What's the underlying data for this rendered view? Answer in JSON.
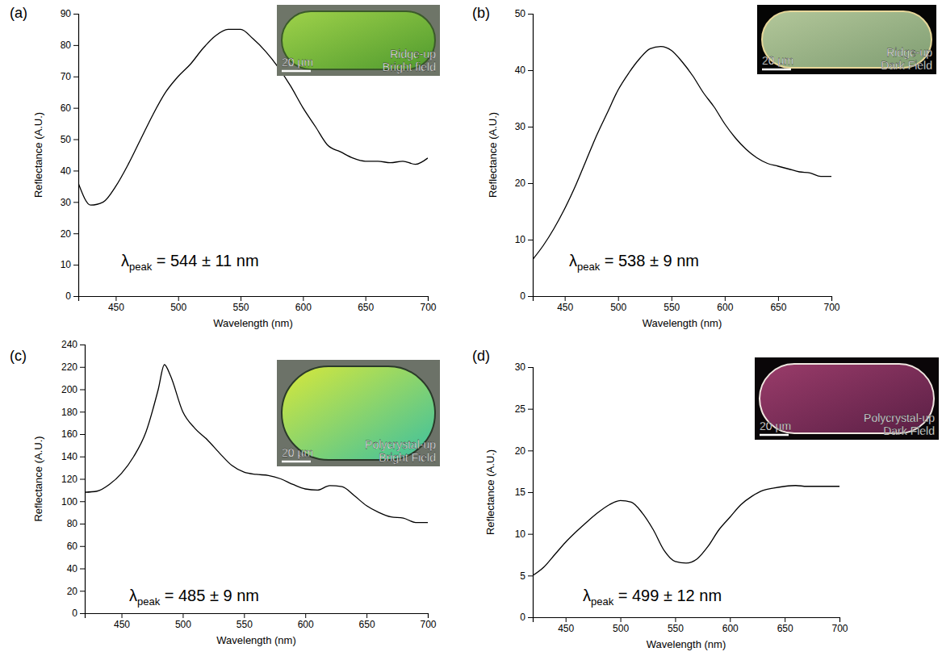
{
  "chart_data": [
    {
      "type": "line",
      "panel_label": "(a)",
      "x_label": "Wavelength (nm)",
      "y_label": "Reflectance (A.U.)",
      "annotation": {
        "symbol": "λ",
        "subscript": "peak",
        "text": " = 544 ± 11 nm"
      },
      "inset": {
        "lines": [
          "Ridge-up",
          "Bright field"
        ],
        "scale_bar": "20 µm"
      },
      "x": [
        420,
        430,
        440,
        450,
        460,
        470,
        480,
        490,
        500,
        510,
        520,
        530,
        540,
        550,
        560,
        570,
        580,
        590,
        600,
        610,
        620,
        630,
        640,
        650,
        660,
        670,
        680,
        690,
        700
      ],
      "values": [
        36,
        29,
        30,
        35,
        42,
        50,
        58,
        65,
        70,
        74,
        79,
        83,
        85,
        85,
        82,
        78,
        73,
        67,
        60,
        54,
        48,
        46,
        44,
        43,
        43,
        42.5,
        43,
        42,
        44
      ],
      "color": "#000000",
      "xlim": [
        420,
        700
      ],
      "xticks": [
        450,
        500,
        550,
        600,
        650,
        700
      ],
      "ylim": [
        0,
        90
      ],
      "yticks": [
        0,
        10,
        20,
        30,
        40,
        50,
        60,
        70,
        80,
        90
      ]
    },
    {
      "type": "line",
      "panel_label": "(b)",
      "x_label": "Wavelength (nm)",
      "y_label": "Reflectance (A.U.)",
      "annotation": {
        "symbol": "λ",
        "subscript": "peak",
        "text": " = 538 ± 9 nm"
      },
      "inset": {
        "lines": [
          "Ridge-up",
          "Dark Field"
        ],
        "scale_bar": "20 µm"
      },
      "x": [
        420,
        430,
        440,
        450,
        460,
        470,
        480,
        490,
        500,
        510,
        520,
        530,
        540,
        550,
        560,
        570,
        580,
        590,
        600,
        610,
        620,
        630,
        640,
        650,
        660,
        670,
        680,
        690,
        700
      ],
      "values": [
        6.5,
        9,
        12,
        15.5,
        19.5,
        24,
        28.5,
        32.5,
        36.5,
        39.5,
        42,
        43.8,
        44.2,
        43.5,
        41.5,
        39,
        36,
        33.5,
        30.5,
        28,
        26,
        24.5,
        23.5,
        23,
        22.5,
        22,
        21.8,
        21.2,
        21.2
      ],
      "color": "#000000",
      "xlim": [
        420,
        700
      ],
      "xticks": [
        450,
        500,
        550,
        600,
        650,
        700
      ],
      "ylim": [
        0,
        50
      ],
      "yticks": [
        0,
        10,
        20,
        30,
        40,
        50
      ]
    },
    {
      "type": "line",
      "panel_label": "(c)",
      "x_label": "Wavelength (nm)",
      "y_label": "Reflectance (A.U.)",
      "annotation": {
        "symbol": "λ",
        "subscript": "peak",
        "text": " = 485 ± 9 nm"
      },
      "inset": {
        "lines": [
          "Polycrystal-up",
          "Bright Field"
        ],
        "scale_bar": "20 µm"
      },
      "x": [
        420,
        430,
        440,
        450,
        460,
        470,
        480,
        485,
        490,
        500,
        510,
        520,
        530,
        540,
        550,
        560,
        570,
        580,
        590,
        600,
        610,
        620,
        630,
        640,
        650,
        660,
        670,
        680,
        690,
        700
      ],
      "values": [
        108,
        109,
        115,
        125,
        140,
        162,
        200,
        222,
        212,
        180,
        165,
        155,
        143,
        132,
        126,
        124,
        123,
        120,
        115,
        111,
        110,
        114,
        113,
        105,
        96,
        90,
        86,
        85,
        81,
        81
      ],
      "color": "#000000",
      "xlim": [
        420,
        700
      ],
      "xticks": [
        450,
        500,
        550,
        600,
        650,
        700
      ],
      "ylim": [
        0,
        240
      ],
      "yticks": [
        0,
        20,
        40,
        60,
        80,
        100,
        120,
        140,
        160,
        180,
        200,
        220,
        240
      ]
    },
    {
      "type": "line",
      "panel_label": "(d)",
      "x_label": "Wavelength (nm)",
      "y_label": "Reflectance (A.U.)",
      "annotation": {
        "symbol": "λ",
        "subscript": "peak",
        "text": " = 499 ± 12 nm"
      },
      "inset": {
        "lines": [
          "Polycrystal-up",
          "Dark Field"
        ],
        "scale_bar": "20 µm"
      },
      "x": [
        420,
        430,
        440,
        450,
        460,
        470,
        480,
        490,
        500,
        510,
        520,
        530,
        540,
        550,
        560,
        570,
        580,
        590,
        600,
        610,
        620,
        630,
        640,
        650,
        660,
        670,
        680,
        690,
        700
      ],
      "values": [
        5,
        6,
        7.5,
        9,
        10.3,
        11.5,
        12.6,
        13.5,
        14,
        13.8,
        12.5,
        10.5,
        8,
        6.7,
        6.5,
        7,
        8.5,
        10.5,
        12,
        13.5,
        14.5,
        15.2,
        15.5,
        15.7,
        15.8,
        15.7,
        15.7,
        15.7,
        15.7
      ],
      "color": "#000000",
      "xlim": [
        420,
        700
      ],
      "xticks": [
        450,
        500,
        550,
        600,
        650,
        700
      ],
      "ylim": [
        0,
        30
      ],
      "yticks": [
        0,
        5,
        10,
        15,
        20,
        25,
        30
      ]
    }
  ]
}
